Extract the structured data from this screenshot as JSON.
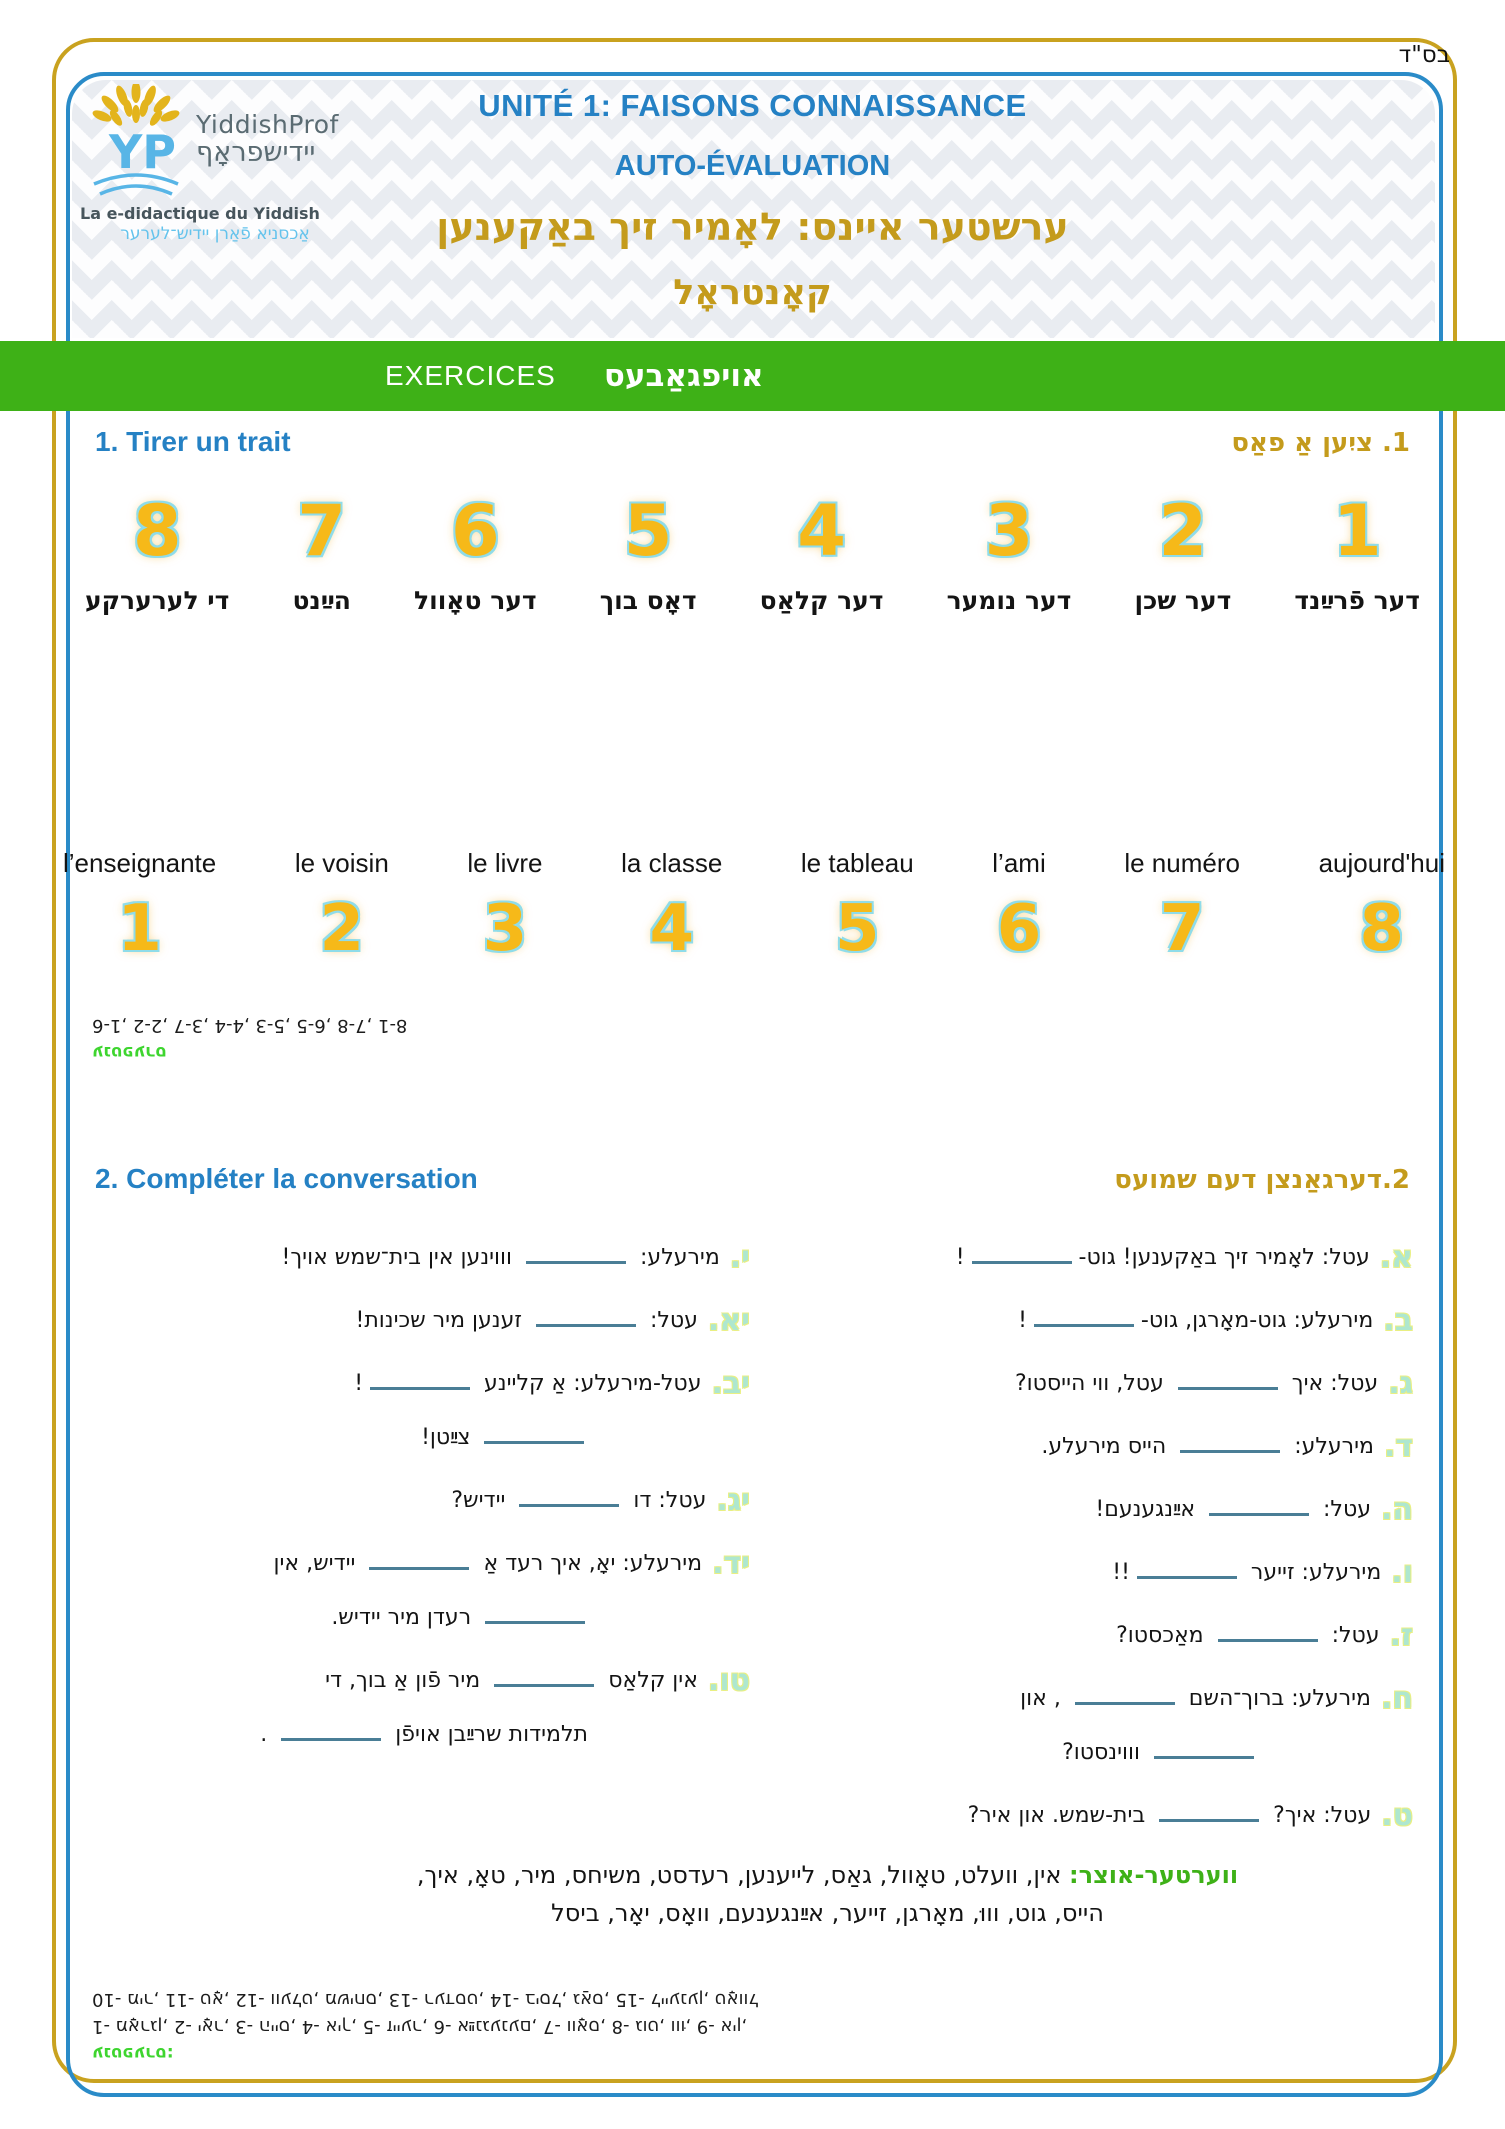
{
  "page": {
    "bsd": "בס\"ד"
  },
  "logo": {
    "name": "YiddishProf",
    "name_yi": "יידישפראָף",
    "tagline_fr": "La e-didactique du Yiddish",
    "tagline_yi": "אַכסניא פֿאַרן יידיש־לערער"
  },
  "header": {
    "title_line1": "UNITÉ 1: FAISONS CONNAISSANCE",
    "title_line2": "AUTO-ÉVALUATION",
    "title_yiddish": "ערשטער איינס: לאָמיר זיך באַקענען",
    "subtitle_yiddish": "קאָנטראָל"
  },
  "banner": {
    "exercises_fr": "EXERCICES",
    "exercises_yi": "אויפגאַבעס"
  },
  "exercise1": {
    "title_fr": "1. Tirer un trait",
    "title_yi": "1. ציִען אַ פאַס",
    "match_top": [
      {
        "num": "8",
        "word": "די לערערקע"
      },
      {
        "num": "7",
        "word": "הײַנט"
      },
      {
        "num": "6",
        "word": "דער טאָוול"
      },
      {
        "num": "5",
        "word": "דאָס בוך"
      },
      {
        "num": "4",
        "word": "דער קלאַס"
      },
      {
        "num": "3",
        "word": "דער נומער"
      },
      {
        "num": "2",
        "word": "דער שכן"
      },
      {
        "num": "1",
        "word": "דער פֿרײַנד"
      }
    ],
    "match_bottom": [
      {
        "word": "l’enseignante",
        "num": "1"
      },
      {
        "word": "le voisin",
        "num": "2"
      },
      {
        "word": "le livre",
        "num": "3"
      },
      {
        "word": "la classe",
        "num": "4"
      },
      {
        "word": "le tableau",
        "num": "5"
      },
      {
        "word": "l’ami",
        "num": "6"
      },
      {
        "word": "le numéro",
        "num": "7"
      },
      {
        "word": "aujourd'hui",
        "num": "8"
      }
    ],
    "answer_key": {
      "label": "ענטפערס",
      "answers": "1-6, 2-2, 3-7, 4-4, 5-3, 6-5, 7-8, 8-1"
    }
  },
  "exercise2": {
    "title_fr": "2. Compléter la conversation",
    "title_yi": "2.דערגאַנצן דעם שמועס",
    "right_column": [
      {
        "marker": "א.",
        "l1": "עטל: לאָמיר זיך באַקענען! גוט-________!",
        "l2": ""
      },
      {
        "marker": "ב.",
        "l1": "מירעלע: גוט-מאָרגן, גוט-________!",
        "l2": ""
      },
      {
        "marker": "ג.",
        "l1": "עטל: איך ________ עטל, ווי הייסטו?",
        "l2": ""
      },
      {
        "marker": "ד.",
        "l1": "מירעלע: ________ הייס מירעלע.",
        "l2": ""
      },
      {
        "marker": "ה.",
        "l1": "עטל: ________ אײַנגענעם!",
        "l2": ""
      },
      {
        "marker": "ו.",
        "l1": "מירעלע: זייער ________!!",
        "l2": ""
      },
      {
        "marker": "ז.",
        "l1": "עטל: ________ מאַכסטו?",
        "l2": ""
      },
      {
        "marker": "ח.",
        "l1": "מירעלע: ברוך־השם ________ , און",
        "l2": "________ וווינסטו?"
      },
      {
        "marker": "ט.",
        "l1": "עטל: איך? ________ בית-שמש. און איר?",
        "l2": ""
      }
    ],
    "left_column": [
      {
        "marker": "י.",
        "l1": "מירעלע: ________ וווינען אין בית־שמש אויך!",
        "l2": ""
      },
      {
        "marker": "יא.",
        "l1": "עטל: ________ זענען מיר שכינות!",
        "l2": ""
      },
      {
        "marker": "יב.",
        "l1": "עטל-מירעלע: אַ קליינע ________!",
        "l2": "________ צײַטן!"
      },
      {
        "marker": "יג.",
        "l1": "עטל: דו ________ יידיש?",
        "l2": ""
      },
      {
        "marker": "יד.",
        "l1": "מירעלע: יאָ, איך רעד אַ ________ יידיש, אין",
        "l2": "________ רעדן מיר יידיש."
      },
      {
        "marker": "טו.",
        "l1": "אין קלאַס ________ מיר פֿון אַ בוך, די",
        "l2": "תלמידות שרײַבן אויפֿן ________ ."
      }
    ],
    "vocab": {
      "label": "ווערטער-אוצר:",
      "line1": "אין, וועלט, טאָוול, גאַס, לייענען, רעדסט, משיחס, מיר, טאָ, איך,",
      "line2": "הייס, גוט, וווּ, מאָרגן, זייער, אײַנגענעם, וואָס, יאָר, ביסל"
    },
    "answer_key": {
      "label": "ענטפערס:",
      "line1": "1- מאָרגן, 2- יאָר, 3- הייס, 4- איך, 5- זייער, 6- אײַנגענעם, 7- וואָס, 8- גוט, וווּ, 9- אין,",
      "line2": "10- מיר, 11- טאָ, 12- וועלט, משיחס, 13- רעדסט, 14- ביסל, גאַס, 15- לייענען, טאָוול"
    }
  },
  "colors": {
    "accent_blue": "#2581c4",
    "accent_gold": "#c49b1c",
    "banner_green": "#3eb117",
    "number_yellow": "#f6b919",
    "number_outline": "#8fdce9",
    "marker_mint": "#aee7cf",
    "marker_outline": "#e9ef83",
    "blank_teal": "#4a7e96",
    "answer_green": "#3ed52f",
    "border_gold": "#c9a21f",
    "border_blue": "#2a8bc8"
  }
}
